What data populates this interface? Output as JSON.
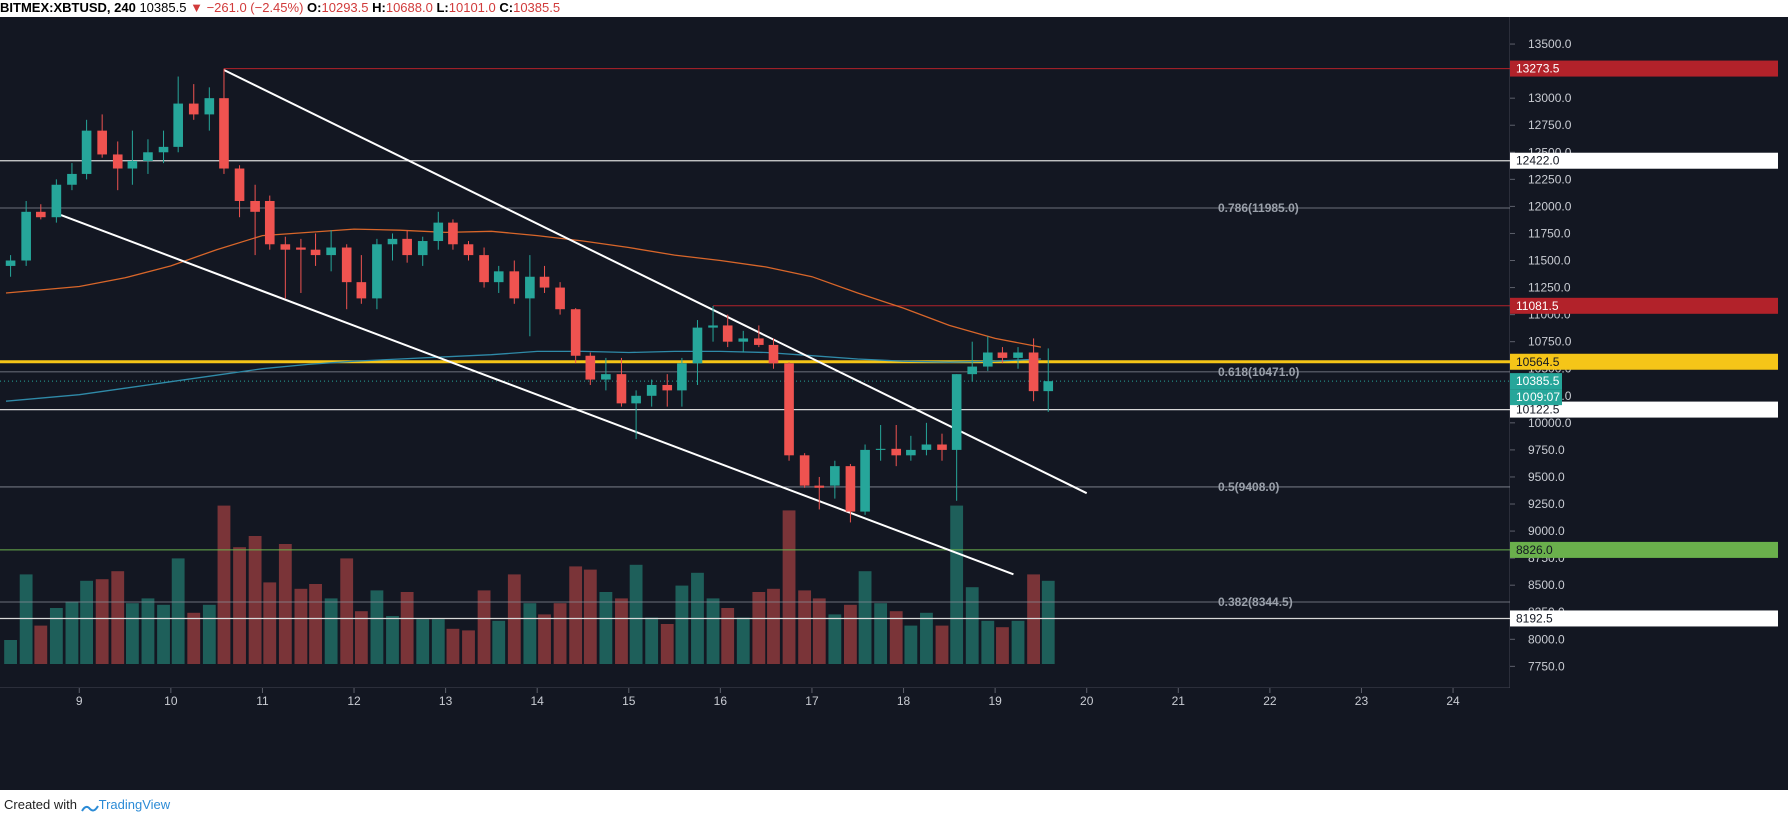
{
  "header": {
    "symbol": "BITMEX:XBTUSD, 240",
    "last": "10385.5",
    "change_arrow": "▼",
    "change": "−261.0 (−2.45%)",
    "open_label": "O:",
    "open": "10293.5",
    "high_label": "H:",
    "high": "10688.0",
    "low_label": "L:",
    "low": "10101.0",
    "close_label": "C:",
    "close": "10385.5"
  },
  "footer": {
    "created_with": "Created with",
    "brand": "TradingView"
  },
  "colors": {
    "background": "#131722",
    "up": "#26a69a",
    "down": "#ef5350",
    "volume_up": "#1e5f5a",
    "volume_down": "#7a3438",
    "resistance_yellow": "#f5c518",
    "red_level": "#b2222a",
    "green_level": "#6ab04c",
    "ma_orange": "#d8662a",
    "ma_blue": "#2f8aa8"
  },
  "chart_data": {
    "type": "candlestick",
    "ylim": [
      7550,
      13750
    ],
    "y_ticks": [
      7750,
      8000,
      8250,
      8500,
      8750,
      9000,
      9250,
      9500,
      9750,
      10000,
      10250,
      10500,
      10750,
      11000,
      11250,
      11500,
      11750,
      12000,
      12250,
      12500,
      12750,
      13000,
      13250,
      13500
    ],
    "x_ticks": [
      "9",
      "10",
      "11",
      "12",
      "13",
      "14",
      "15",
      "16",
      "17",
      "18",
      "19",
      "20",
      "21",
      "22",
      "23",
      "24"
    ],
    "x_range_days": [
      8.2,
      24.6
    ],
    "candles": [
      {
        "t": 8.25,
        "o": 11450,
        "h": 11550,
        "l": 11350,
        "c": 11500
      },
      {
        "t": 8.42,
        "o": 11500,
        "h": 12050,
        "l": 11450,
        "c": 11950
      },
      {
        "t": 8.58,
        "o": 11950,
        "h": 12020,
        "l": 11880,
        "c": 11900
      },
      {
        "t": 8.75,
        "o": 11900,
        "h": 12250,
        "l": 11850,
        "c": 12200
      },
      {
        "t": 8.92,
        "o": 12200,
        "h": 12400,
        "l": 12150,
        "c": 12300
      },
      {
        "t": 9.08,
        "o": 12300,
        "h": 12800,
        "l": 12250,
        "c": 12700
      },
      {
        "t": 9.25,
        "o": 12700,
        "h": 12850,
        "l": 12450,
        "c": 12480
      },
      {
        "t": 9.42,
        "o": 12480,
        "h": 12600,
        "l": 12150,
        "c": 12350
      },
      {
        "t": 9.58,
        "o": 12350,
        "h": 12700,
        "l": 12200,
        "c": 12420
      },
      {
        "t": 9.75,
        "o": 12420,
        "h": 12620,
        "l": 12300,
        "c": 12500
      },
      {
        "t": 9.92,
        "o": 12500,
        "h": 12700,
        "l": 12400,
        "c": 12550
      },
      {
        "t": 10.08,
        "o": 12550,
        "h": 13200,
        "l": 12500,
        "c": 12950
      },
      {
        "t": 10.25,
        "o": 12950,
        "h": 13130,
        "l": 12800,
        "c": 12850
      },
      {
        "t": 10.42,
        "o": 12850,
        "h": 13100,
        "l": 12700,
        "c": 13000
      },
      {
        "t": 10.58,
        "o": 13000,
        "h": 13273,
        "l": 12300,
        "c": 12350
      },
      {
        "t": 10.75,
        "o": 12350,
        "h": 12380,
        "l": 11900,
        "c": 12050
      },
      {
        "t": 10.92,
        "o": 12050,
        "h": 12200,
        "l": 11550,
        "c": 11950
      },
      {
        "t": 11.08,
        "o": 12050,
        "h": 12100,
        "l": 11600,
        "c": 11650
      },
      {
        "t": 11.25,
        "o": 11650,
        "h": 11720,
        "l": 11150,
        "c": 11600
      },
      {
        "t": 11.42,
        "o": 11620,
        "h": 11700,
        "l": 11200,
        "c": 11600
      },
      {
        "t": 11.58,
        "o": 11600,
        "h": 11750,
        "l": 11450,
        "c": 11550
      },
      {
        "t": 11.75,
        "o": 11550,
        "h": 11780,
        "l": 11400,
        "c": 11620
      },
      {
        "t": 11.92,
        "o": 11620,
        "h": 11650,
        "l": 11050,
        "c": 11300
      },
      {
        "t": 12.08,
        "o": 11300,
        "h": 11550,
        "l": 11100,
        "c": 11150
      },
      {
        "t": 12.25,
        "o": 11150,
        "h": 11700,
        "l": 11050,
        "c": 11650
      },
      {
        "t": 12.42,
        "o": 11650,
        "h": 11750,
        "l": 11500,
        "c": 11700
      },
      {
        "t": 12.58,
        "o": 11700,
        "h": 11780,
        "l": 11480,
        "c": 11550
      },
      {
        "t": 12.75,
        "o": 11550,
        "h": 11720,
        "l": 11450,
        "c": 11680
      },
      {
        "t": 12.92,
        "o": 11680,
        "h": 11950,
        "l": 11600,
        "c": 11850
      },
      {
        "t": 13.08,
        "o": 11850,
        "h": 11880,
        "l": 11600,
        "c": 11650
      },
      {
        "t": 13.25,
        "o": 11650,
        "h": 11680,
        "l": 11500,
        "c": 11550
      },
      {
        "t": 13.42,
        "o": 11550,
        "h": 11620,
        "l": 11250,
        "c": 11300
      },
      {
        "t": 13.58,
        "o": 11300,
        "h": 11450,
        "l": 11200,
        "c": 11400
      },
      {
        "t": 13.75,
        "o": 11400,
        "h": 11500,
        "l": 11100,
        "c": 11150
      },
      {
        "t": 13.92,
        "o": 11150,
        "h": 11550,
        "l": 10800,
        "c": 11350
      },
      {
        "t": 14.08,
        "o": 11350,
        "h": 11450,
        "l": 11200,
        "c": 11250
      },
      {
        "t": 14.25,
        "o": 11250,
        "h": 11300,
        "l": 11000,
        "c": 11050
      },
      {
        "t": 14.42,
        "o": 11050,
        "h": 11060,
        "l": 10550,
        "c": 10620
      },
      {
        "t": 14.58,
        "o": 10620,
        "h": 10650,
        "l": 10350,
        "c": 10400
      },
      {
        "t": 14.75,
        "o": 10400,
        "h": 10600,
        "l": 10300,
        "c": 10450
      },
      {
        "t": 14.92,
        "o": 10450,
        "h": 10600,
        "l": 10150,
        "c": 10180
      },
      {
        "t": 15.08,
        "o": 10180,
        "h": 10300,
        "l": 9850,
        "c": 10250
      },
      {
        "t": 15.25,
        "o": 10250,
        "h": 10400,
        "l": 10150,
        "c": 10350
      },
      {
        "t": 15.42,
        "o": 10350,
        "h": 10450,
        "l": 10150,
        "c": 10300
      },
      {
        "t": 15.58,
        "o": 10300,
        "h": 10600,
        "l": 10150,
        "c": 10550
      },
      {
        "t": 15.75,
        "o": 10550,
        "h": 10950,
        "l": 10350,
        "c": 10880
      },
      {
        "t": 15.92,
        "o": 10880,
        "h": 11080,
        "l": 10750,
        "c": 10900
      },
      {
        "t": 16.08,
        "o": 10900,
        "h": 11000,
        "l": 10700,
        "c": 10750
      },
      {
        "t": 16.25,
        "o": 10750,
        "h": 10850,
        "l": 10650,
        "c": 10780
      },
      {
        "t": 16.42,
        "o": 10780,
        "h": 10900,
        "l": 10700,
        "c": 10720
      },
      {
        "t": 16.58,
        "o": 10720,
        "h": 10780,
        "l": 10500,
        "c": 10550
      },
      {
        "t": 16.75,
        "o": 10550,
        "h": 10560,
        "l": 9650,
        "c": 9700
      },
      {
        "t": 16.92,
        "o": 9700,
        "h": 9720,
        "l": 9400,
        "c": 9420
      },
      {
        "t": 17.08,
        "o": 9420,
        "h": 9500,
        "l": 9200,
        "c": 9400
      },
      {
        "t": 17.25,
        "o": 9420,
        "h": 9650,
        "l": 9300,
        "c": 9600
      },
      {
        "t": 17.42,
        "o": 9600,
        "h": 9620,
        "l": 9080,
        "c": 9180
      },
      {
        "t": 17.58,
        "o": 9180,
        "h": 9800,
        "l": 9150,
        "c": 9750
      },
      {
        "t": 17.75,
        "o": 9750,
        "h": 9980,
        "l": 9650,
        "c": 9760
      },
      {
        "t": 17.92,
        "o": 9760,
        "h": 9980,
        "l": 9600,
        "c": 9700
      },
      {
        "t": 18.08,
        "o": 9700,
        "h": 9880,
        "l": 9650,
        "c": 9750
      },
      {
        "t": 18.25,
        "o": 9750,
        "h": 10000,
        "l": 9700,
        "c": 9800
      },
      {
        "t": 18.42,
        "o": 9800,
        "h": 9900,
        "l": 9650,
        "c": 9750
      },
      {
        "t": 18.58,
        "o": 9750,
        "h": 10450,
        "l": 9280,
        "c": 10450
      },
      {
        "t": 18.75,
        "o": 10450,
        "h": 10750,
        "l": 10380,
        "c": 10520
      },
      {
        "t": 18.92,
        "o": 10520,
        "h": 10800,
        "l": 10480,
        "c": 10650
      },
      {
        "t": 19.08,
        "o": 10650,
        "h": 10700,
        "l": 10550,
        "c": 10600
      },
      {
        "t": 19.25,
        "o": 10600,
        "h": 10700,
        "l": 10500,
        "c": 10650
      },
      {
        "t": 19.42,
        "o": 10650,
        "h": 10780,
        "l": 10200,
        "c": 10293
      },
      {
        "t": 19.58,
        "o": 10293,
        "h": 10688,
        "l": 10101,
        "c": 10385
      }
    ],
    "volume_scale": [
      0,
      1
    ],
    "volumes": [
      0.15,
      0.56,
      0.24,
      0.35,
      0.39,
      0.52,
      0.53,
      0.58,
      0.38,
      0.41,
      0.37,
      0.66,
      0.32,
      0.37,
      0.99,
      0.73,
      0.8,
      0.51,
      0.75,
      0.47,
      0.5,
      0.41,
      0.66,
      0.33,
      0.46,
      0.3,
      0.45,
      0.28,
      0.28,
      0.22,
      0.21,
      0.46,
      0.27,
      0.56,
      0.38,
      0.31,
      0.38,
      0.61,
      0.59,
      0.45,
      0.41,
      0.62,
      0.29,
      0.25,
      0.49,
      0.57,
      0.41,
      0.35,
      0.29,
      0.45,
      0.47,
      0.96,
      0.46,
      0.41,
      0.31,
      0.37,
      0.58,
      0.38,
      0.33,
      0.24,
      0.32,
      0.24,
      0.99,
      0.48,
      0.27,
      0.23,
      0.27,
      0.56,
      0.52
    ],
    "levels": [
      {
        "value": 13273.5,
        "label": "13273.5",
        "style": "red"
      },
      {
        "value": 12422.0,
        "label": "12422.0",
        "style": "white"
      },
      {
        "value": 11081.5,
        "label": "11081.5",
        "style": "red"
      },
      {
        "value": 10564.5,
        "label": "10564.5",
        "style": "yellow"
      },
      {
        "value": 10122.5,
        "label": "10122.5",
        "style": "white"
      },
      {
        "value": 8826.0,
        "label": "8826.0",
        "style": "green"
      },
      {
        "value": 8192.5,
        "label": "8192.5",
        "style": "white"
      }
    ],
    "fib_levels": [
      {
        "value": 11985.0,
        "label": "0.786(11985.0)"
      },
      {
        "value": 10471.0,
        "label": "0.618(10471.0)"
      },
      {
        "value": 9408.0,
        "label": "0.5(9408.0)"
      },
      {
        "value": 8344.5,
        "label": "0.382(8344.5)"
      }
    ],
    "price_tag": {
      "value": 10385.5,
      "label": "10385.5",
      "timer": "09:07",
      "timer_prefix": "10"
    },
    "trendlines": [
      {
        "t1": 10.58,
        "v1": 13260,
        "t2": 20.0,
        "v2": 9350
      },
      {
        "t1": 8.8,
        "v1": 11920,
        "t2": 19.2,
        "v2": 8600
      }
    ],
    "ma_orange": [
      [
        8.2,
        11200
      ],
      [
        9.0,
        11260
      ],
      [
        9.5,
        11340
      ],
      [
        10.0,
        11450
      ],
      [
        10.5,
        11600
      ],
      [
        11.0,
        11730
      ],
      [
        11.5,
        11760
      ],
      [
        12.0,
        11790
      ],
      [
        12.5,
        11780
      ],
      [
        13.0,
        11760
      ],
      [
        13.5,
        11770
      ],
      [
        14.0,
        11730
      ],
      [
        14.5,
        11680
      ],
      [
        15.0,
        11620
      ],
      [
        15.5,
        11550
      ],
      [
        16.0,
        11500
      ],
      [
        16.5,
        11440
      ],
      [
        17.0,
        11350
      ],
      [
        17.5,
        11200
      ],
      [
        18.0,
        11060
      ],
      [
        18.5,
        10900
      ],
      [
        19.0,
        10780
      ],
      [
        19.5,
        10700
      ]
    ],
    "ma_blue": [
      [
        8.2,
        10200
      ],
      [
        9.0,
        10260
      ],
      [
        9.5,
        10320
      ],
      [
        10.0,
        10380
      ],
      [
        10.5,
        10440
      ],
      [
        11.0,
        10500
      ],
      [
        11.5,
        10540
      ],
      [
        12.0,
        10570
      ],
      [
        12.5,
        10590
      ],
      [
        13.0,
        10610
      ],
      [
        13.5,
        10630
      ],
      [
        14.0,
        10660
      ],
      [
        14.5,
        10660
      ],
      [
        15.0,
        10650
      ],
      [
        15.5,
        10660
      ],
      [
        16.0,
        10660
      ],
      [
        16.5,
        10650
      ],
      [
        17.0,
        10620
      ],
      [
        17.5,
        10590
      ],
      [
        18.0,
        10570
      ],
      [
        18.5,
        10560
      ],
      [
        19.0,
        10570
      ],
      [
        19.5,
        10590
      ]
    ]
  }
}
